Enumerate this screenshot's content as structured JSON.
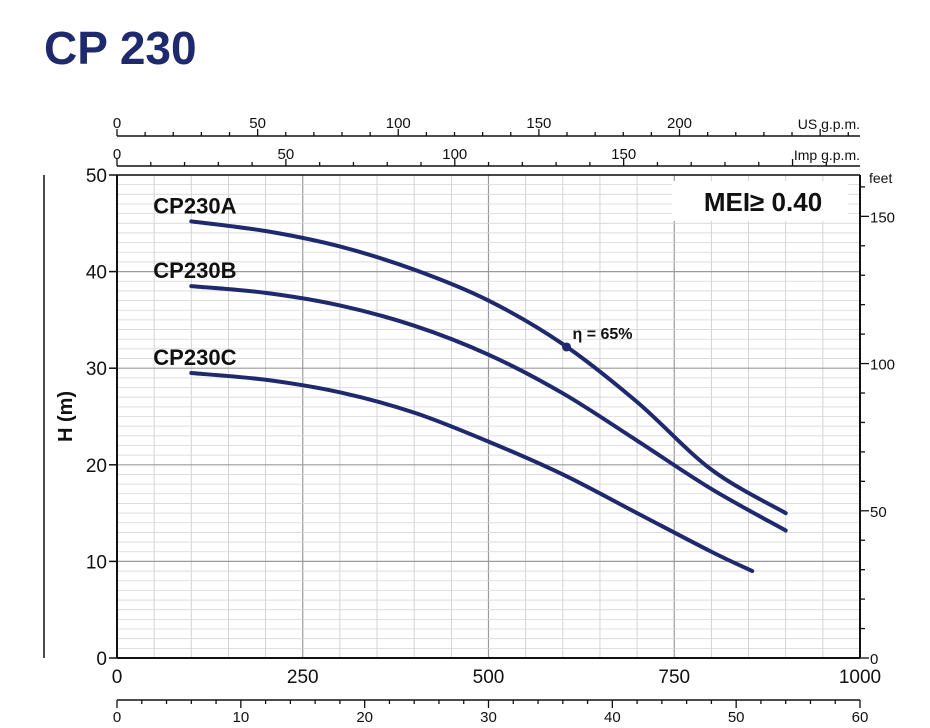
{
  "title": "CP 230",
  "chart_data": {
    "type": "line",
    "title": "CP 230",
    "ylabel": "H (m)",
    "x": {
      "unit_bottom": "",
      "ticks_bottom": [
        "0",
        "250",
        "500",
        "750",
        "1000"
      ],
      "range": [
        0,
        1000
      ]
    },
    "x_secondary_bottom": {
      "ticks": [
        "0",
        "10",
        "20",
        "30",
        "40",
        "50",
        "60"
      ],
      "range": [
        0,
        60
      ]
    },
    "x_top_us": {
      "label": "US g.p.m.",
      "ticks": [
        "0",
        "50",
        "100",
        "150",
        "200"
      ],
      "max": 264.17
    },
    "x_top_imp": {
      "label": "Imp g.p.m.",
      "ticks": [
        "0",
        "50",
        "100",
        "150"
      ],
      "max": 219.97
    },
    "y": {
      "ticks": [
        "0",
        "10",
        "20",
        "30",
        "40",
        "50"
      ],
      "range": [
        0,
        50
      ]
    },
    "y_right": {
      "label": "feet",
      "ticks": [
        "0",
        "50",
        "100",
        "150"
      ],
      "max": 164.04
    },
    "annotation_mei": "MEI≥ 0.40",
    "efficiency_point": {
      "label": "η = 65%",
      "x": 605,
      "y": 32.2
    },
    "series": [
      {
        "name": "CP230A",
        "color": "#1f2a6e",
        "points": [
          [
            100,
            45.2
          ],
          [
            200,
            44.2
          ],
          [
            300,
            42.6
          ],
          [
            400,
            40.2
          ],
          [
            500,
            37.0
          ],
          [
            600,
            32.5
          ],
          [
            700,
            26.5
          ],
          [
            800,
            19.5
          ],
          [
            900,
            15.0
          ]
        ]
      },
      {
        "name": "CP230B",
        "color": "#1f2a6e",
        "points": [
          [
            100,
            38.5
          ],
          [
            200,
            37.8
          ],
          [
            300,
            36.5
          ],
          [
            400,
            34.4
          ],
          [
            500,
            31.4
          ],
          [
            600,
            27.4
          ],
          [
            700,
            22.5
          ],
          [
            800,
            17.5
          ],
          [
            900,
            13.2
          ]
        ]
      },
      {
        "name": "CP230C",
        "color": "#1f2a6e",
        "points": [
          [
            100,
            29.5
          ],
          [
            200,
            28.8
          ],
          [
            300,
            27.5
          ],
          [
            400,
            25.4
          ],
          [
            500,
            22.4
          ],
          [
            600,
            19.0
          ],
          [
            700,
            15.0
          ],
          [
            800,
            11.0
          ],
          [
            855,
            9.0
          ]
        ]
      }
    ]
  }
}
